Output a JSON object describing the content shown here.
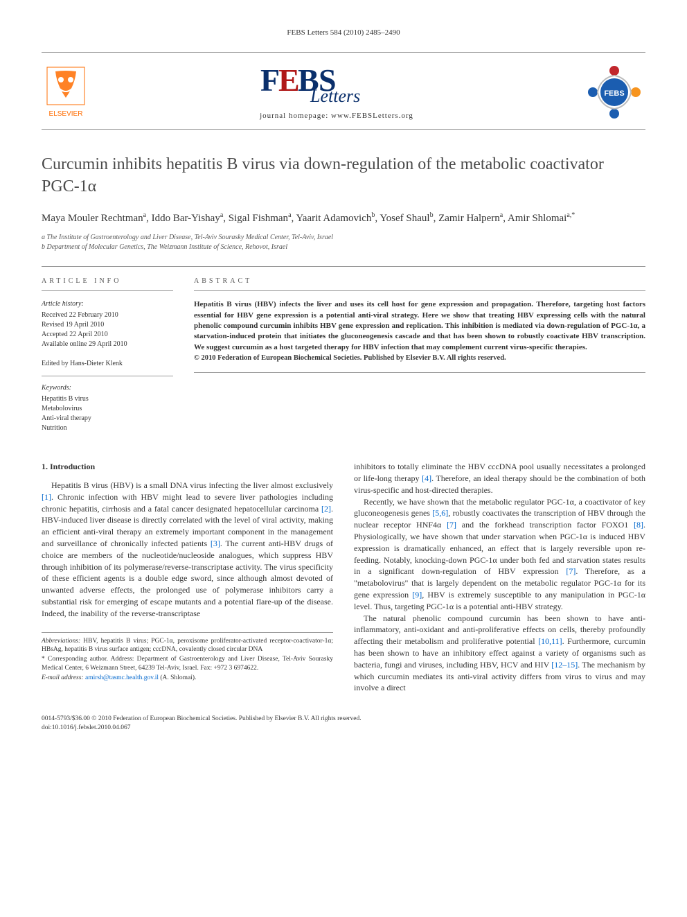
{
  "header": {
    "citation": "FEBS Letters 584 (2010) 2485–2490",
    "homepage_label": "journal homepage: www.FEBSLetters.org",
    "elsevier_alt": "ELSEVIER",
    "febs_letters_alt": "FEBS Letters",
    "febs_badge_alt": "FEBS"
  },
  "logos": {
    "elsevier_orange": "#ff6c00",
    "elsevier_text": "ELSEVIER",
    "febs_blue": "#0a2f6b",
    "febs_red": "#b01818",
    "febs_script": "Letters",
    "febs_main": "FEBS",
    "badge_blue": "#1b5db0",
    "badge_red": "#c1272d",
    "badge_orange": "#f7941e",
    "badge_text": "FEBS"
  },
  "article": {
    "title": "Curcumin inhibits hepatitis B virus via down-regulation of the metabolic coactivator PGC-1α",
    "authors_html": "Maya Mouler Rechtman<sup>a</sup>, Iddo Bar-Yishay<sup>a</sup>, Sigal Fishman<sup>a</sup>, Yaarit Adamovich<sup>b</sup>, Yosef Shaul<sup>b</sup>, Zamir Halpern<sup>a</sup>, Amir Shlomai<sup>a,*</sup>",
    "authors": [
      {
        "name": "Maya Mouler Rechtman",
        "affil": "a"
      },
      {
        "name": "Iddo Bar-Yishay",
        "affil": "a"
      },
      {
        "name": "Sigal Fishman",
        "affil": "a"
      },
      {
        "name": "Yaarit Adamovich",
        "affil": "b"
      },
      {
        "name": "Yosef Shaul",
        "affil": "b"
      },
      {
        "name": "Zamir Halpern",
        "affil": "a"
      },
      {
        "name": "Amir Shlomai",
        "affil": "a,*"
      }
    ],
    "affiliations": [
      "a The Institute of Gastroenterology and Liver Disease, Tel-Aviv Sourasky Medical Center, Tel-Aviv, Israel",
      "b Department of Molecular Genetics, The Weizmann Institute of Science, Rehovot, Israel"
    ]
  },
  "info": {
    "section_label": "ARTICLE INFO",
    "history_heading": "Article history:",
    "history": [
      "Received 22 February 2010",
      "Revised 19 April 2010",
      "Accepted 22 April 2010",
      "Available online 29 April 2010"
    ],
    "edited_by": "Edited by Hans-Dieter Klenk",
    "keywords_heading": "Keywords:",
    "keywords": [
      "Hepatitis B virus",
      "Metabolovirus",
      "Anti-viral therapy",
      "Nutrition"
    ]
  },
  "abstract": {
    "section_label": "ABSTRACT",
    "text": "Hepatitis B virus (HBV) infects the liver and uses its cell host for gene expression and propagation. Therefore, targeting host factors essential for HBV gene expression is a potential anti-viral strategy. Here we show that treating HBV expressing cells with the natural phenolic compound curcumin inhibits HBV gene expression and replication. This inhibition is mediated via down-regulation of PGC-1α, a starvation-induced protein that initiates the gluconeogenesis cascade and that has been shown to robustly coactivate HBV transcription. We suggest curcumin as a host targeted therapy for HBV infection that may complement current virus-specific therapies.",
    "copyright": "© 2010 Federation of European Biochemical Societies. Published by Elsevier B.V. All rights reserved."
  },
  "body": {
    "intro_heading": "1. Introduction",
    "col1_paras": [
      "Hepatitis B virus (HBV) is a small DNA virus infecting the liver almost exclusively [1]. Chronic infection with HBV might lead to severe liver pathologies including chronic hepatitis, cirrhosis and a fatal cancer designated hepatocellular carcinoma [2]. HBV-induced liver disease is directly correlated with the level of viral activity, making an efficient anti-viral therapy an extremely important component in the management and surveillance of chronically infected patients [3]. The current anti-HBV drugs of choice are members of the nucleotide/nucleoside analogues, which suppress HBV through inhibition of its polymerase/reverse-transcriptase activity. The virus specificity of these efficient agents is a double edge sword, since although almost devoted of unwanted adverse effects, the prolonged use of polymerase inhibitors carry a substantial risk for emerging of escape mutants and a potential flare-up of the disease. Indeed, the inability of the reverse-transcriptase"
    ],
    "col2_paras": [
      "inhibitors to totally eliminate the HBV cccDNA pool usually necessitates a prolonged or life-long therapy [4]. Therefore, an ideal therapy should be the combination of both virus-specific and host-directed therapies.",
      "Recently, we have shown that the metabolic regulator PGC-1α, a coactivator of key gluconeogenesis genes [5,6], robustly coactivates the transcription of HBV through the nuclear receptor HNF4α [7] and the forkhead transcription factor FOXO1 [8]. Physiologically, we have shown that under starvation when PGC-1α is induced HBV expression is dramatically enhanced, an effect that is largely reversible upon re-feeding. Notably, knocking-down PGC-1α under both fed and starvation states results in a significant down-regulation of HBV expression [7]. Therefore, as a \"metabolovirus\" that is largely dependent on the metabolic regulator PGC-1α for its gene expression [9], HBV is extremely susceptible to any manipulation in PGC-1α level. Thus, targeting PGC-1α is a potential anti-HBV strategy.",
      "The natural phenolic compound curcumin has been shown to have anti-inflammatory, anti-oxidant and anti-proliferative effects on cells, thereby profoundly affecting their metabolism and proliferative potential [10,11]. Furthermore, curcumin has been shown to have an inhibitory effect against a variety of organisms such as bacteria, fungi and viruses, including HBV, HCV and HIV [12–15]. The mechanism by which curcumin mediates its anti-viral activity differs from virus to virus and may involve a direct"
    ],
    "refs_col1": [
      "[1]",
      "[2]",
      "[3]"
    ],
    "refs_col2": [
      "[4]",
      "[5,6]",
      "[7]",
      "[8]",
      "[7]",
      "[9]",
      "[10,11]",
      "[12–15]"
    ]
  },
  "footnotes": {
    "abbrev_label": "Abbreviations:",
    "abbrev_text": " HBV, hepatitis B virus; PGC-1α, peroxisome proliferator-activated receptor-coactivator-1α; HBsAg, hepatitis B virus surface antigen; cccDNA, covalently closed circular DNA",
    "corr_label": "* Corresponding author.",
    "corr_text": " Address: Department of Gastroenterology and Liver Disease, Tel-Aviv Sourasky Medical Center, 6 Weizmann Street, 64239 Tel-Aviv, Israel. Fax: +972 3 6974622.",
    "email_label": "E-mail address:",
    "email": "amirsh@tasmc.health.gov.il",
    "email_suffix": " (A. Shlomai)."
  },
  "footer": {
    "line1": "0014-5793/$36.00 © 2010 Federation of European Biochemical Societies. Published by Elsevier B.V. All rights reserved.",
    "line2": "doi:10.1016/j.febslet.2010.04.067"
  },
  "colors": {
    "text": "#333333",
    "link": "#0066cc",
    "rule": "#999999",
    "title": "#4a4a4a"
  }
}
